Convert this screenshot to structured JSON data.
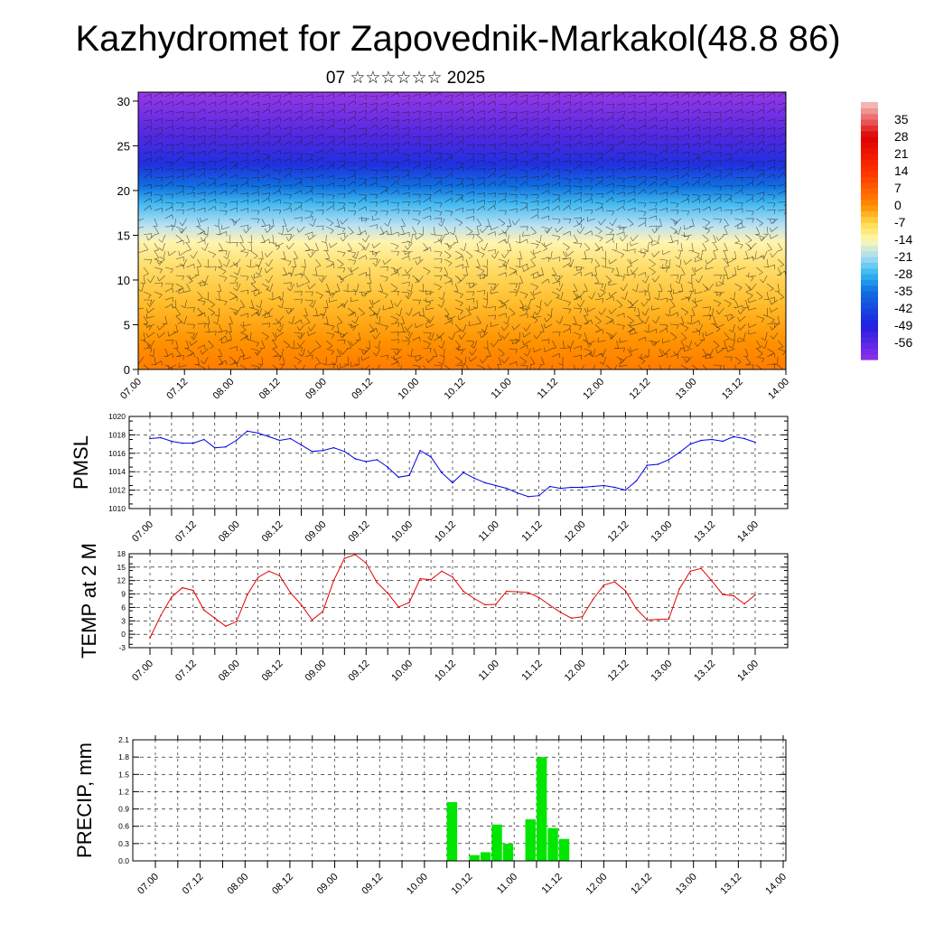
{
  "title": "Kazhydromet for Zapovednik-Markakol(48.8 86)",
  "subtitle": "07 ☆☆☆☆☆☆ 2025",
  "x_ticks": [
    "07.00",
    "07.12",
    "08.00",
    "08.12",
    "09.00",
    "09.12",
    "10.00",
    "10.12",
    "11.00",
    "11.12",
    "12.00",
    "12.12",
    "13.00",
    "13.12",
    "14.00"
  ],
  "colors": {
    "pmsl": "#0000e6",
    "temp": "#e60000",
    "precip": "#00e600"
  },
  "chart_data": [
    {
      "type": "heatmap",
      "name": "vertical-section",
      "xlabel": "",
      "ylabel": "",
      "y_ticks": [
        0,
        5,
        10,
        15,
        20,
        25,
        30
      ],
      "ylim": [
        0,
        31
      ],
      "x_range": [
        0,
        168
      ],
      "colorbar_labels": [
        "35",
        "28",
        "21",
        "14",
        "7",
        "0",
        "-7",
        "-14",
        "-21",
        "-28",
        "-35",
        "-42",
        "-49",
        "-56"
      ],
      "colorbar_range": [
        -63,
        42
      ],
      "colorbar_stops": [
        {
          "v": 42,
          "c": "#f6c4c4"
        },
        {
          "v": 28,
          "c": "#dd0000"
        },
        {
          "v": 14,
          "c": "#ff3000"
        },
        {
          "v": 0,
          "c": "#ff8c00"
        },
        {
          "v": -7,
          "c": "#ffd84a"
        },
        {
          "v": -14,
          "c": "#fffab0"
        },
        {
          "v": -21,
          "c": "#a8dcf2"
        },
        {
          "v": -28,
          "c": "#30b8f0"
        },
        {
          "v": -35,
          "c": "#1070e0"
        },
        {
          "v": -49,
          "c": "#2020e0"
        },
        {
          "v": -63,
          "c": "#9030e8"
        }
      ]
    },
    {
      "type": "line",
      "name": "pmsl",
      "ylabel": "PMSL",
      "ylim": [
        1010,
        1020
      ],
      "y_ticks": [
        1010,
        1012,
        1014,
        1016,
        1018,
        1020
      ],
      "x": [
        0,
        3,
        6,
        9,
        12,
        15,
        18,
        21,
        24,
        27,
        30,
        33,
        36,
        39,
        42,
        45,
        48,
        51,
        54,
        57,
        60,
        63,
        66,
        69,
        72,
        75,
        78,
        81,
        84,
        87,
        90,
        93,
        96,
        99,
        102,
        105,
        108,
        111,
        114,
        117,
        120,
        123,
        126,
        129,
        132,
        135,
        138,
        141,
        144,
        147,
        150,
        153,
        156,
        159,
        162,
        165,
        168
      ],
      "series": [
        {
          "values": [
            1017.6,
            1017.7,
            1017.3,
            1017.1,
            1017.1,
            1017.5,
            1016.6,
            1016.7,
            1017.4,
            1018.4,
            1018.2,
            1017.8,
            1017.4,
            1017.6,
            1016.9,
            1016.2,
            1016.3,
            1016.6,
            1016.2,
            1015.4,
            1015.1,
            1015.3,
            1014.5,
            1013.4,
            1013.6,
            1016.3,
            1015.6,
            1013.9,
            1012.8,
            1013.9,
            1013.3,
            1012.8,
            1012.5,
            1012.2,
            1011.7,
            1011.3,
            1011.4,
            1012.4,
            1012.2,
            1012.3,
            1012.3,
            1012.4,
            1012.5,
            1012.3,
            1012.0,
            1013.0,
            1014.7,
            1014.8,
            1015.3,
            1016.1,
            1017.0,
            1017.4,
            1017.5,
            1017.3,
            1017.8,
            1017.6,
            1017.2
          ]
        }
      ]
    },
    {
      "type": "line",
      "name": "temp-2m",
      "ylabel": "TEMP at 2 M",
      "ylim": [
        -3,
        18
      ],
      "y_ticks": [
        -3,
        0,
        3,
        6,
        9,
        12,
        15,
        18
      ],
      "x": [
        0,
        3,
        6,
        9,
        12,
        15,
        18,
        21,
        24,
        27,
        30,
        33,
        36,
        39,
        42,
        45,
        48,
        51,
        54,
        57,
        60,
        63,
        66,
        69,
        72,
        75,
        78,
        81,
        84,
        87,
        90,
        93,
        96,
        99,
        102,
        105,
        108,
        111,
        114,
        117,
        120,
        123,
        126,
        129,
        132,
        135,
        138,
        141,
        144,
        147,
        150,
        153,
        156,
        159,
        162,
        165,
        168
      ],
      "series": [
        {
          "values": [
            -0.8,
            4.2,
            8.3,
            10.4,
            9.8,
            5.4,
            3.6,
            1.8,
            2.8,
            8.8,
            12.7,
            14.1,
            13.1,
            9.3,
            6.6,
            3.2,
            5.1,
            12.0,
            17.0,
            17.8,
            15.9,
            11.6,
            9.2,
            6.1,
            7.1,
            12.4,
            12.2,
            14.1,
            12.8,
            9.6,
            8.0,
            6.6,
            6.7,
            9.6,
            9.5,
            9.3,
            8.2,
            6.5,
            4.9,
            3.6,
            3.9,
            7.8,
            11.0,
            11.7,
            9.7,
            5.7,
            3.2,
            3.3,
            3.4,
            10.2,
            14.1,
            14.7,
            11.9,
            8.9,
            8.6,
            6.8,
            8.8
          ]
        }
      ]
    },
    {
      "type": "bar",
      "name": "precip",
      "ylabel": "PRECIP, mm",
      "ylim": [
        0,
        2.1
      ],
      "y_ticks": [
        "0.0",
        "0.3",
        "0.6",
        "0.9",
        "1.2",
        "1.5",
        "1.8",
        "2.1"
      ],
      "x": [
        78,
        84,
        87,
        90,
        93,
        99,
        102,
        105,
        108
      ],
      "series": [
        {
          "values": [
            1.02,
            0.1,
            0.15,
            0.63,
            0.3,
            0.72,
            1.8,
            0.57,
            0.38
          ]
        }
      ]
    }
  ]
}
